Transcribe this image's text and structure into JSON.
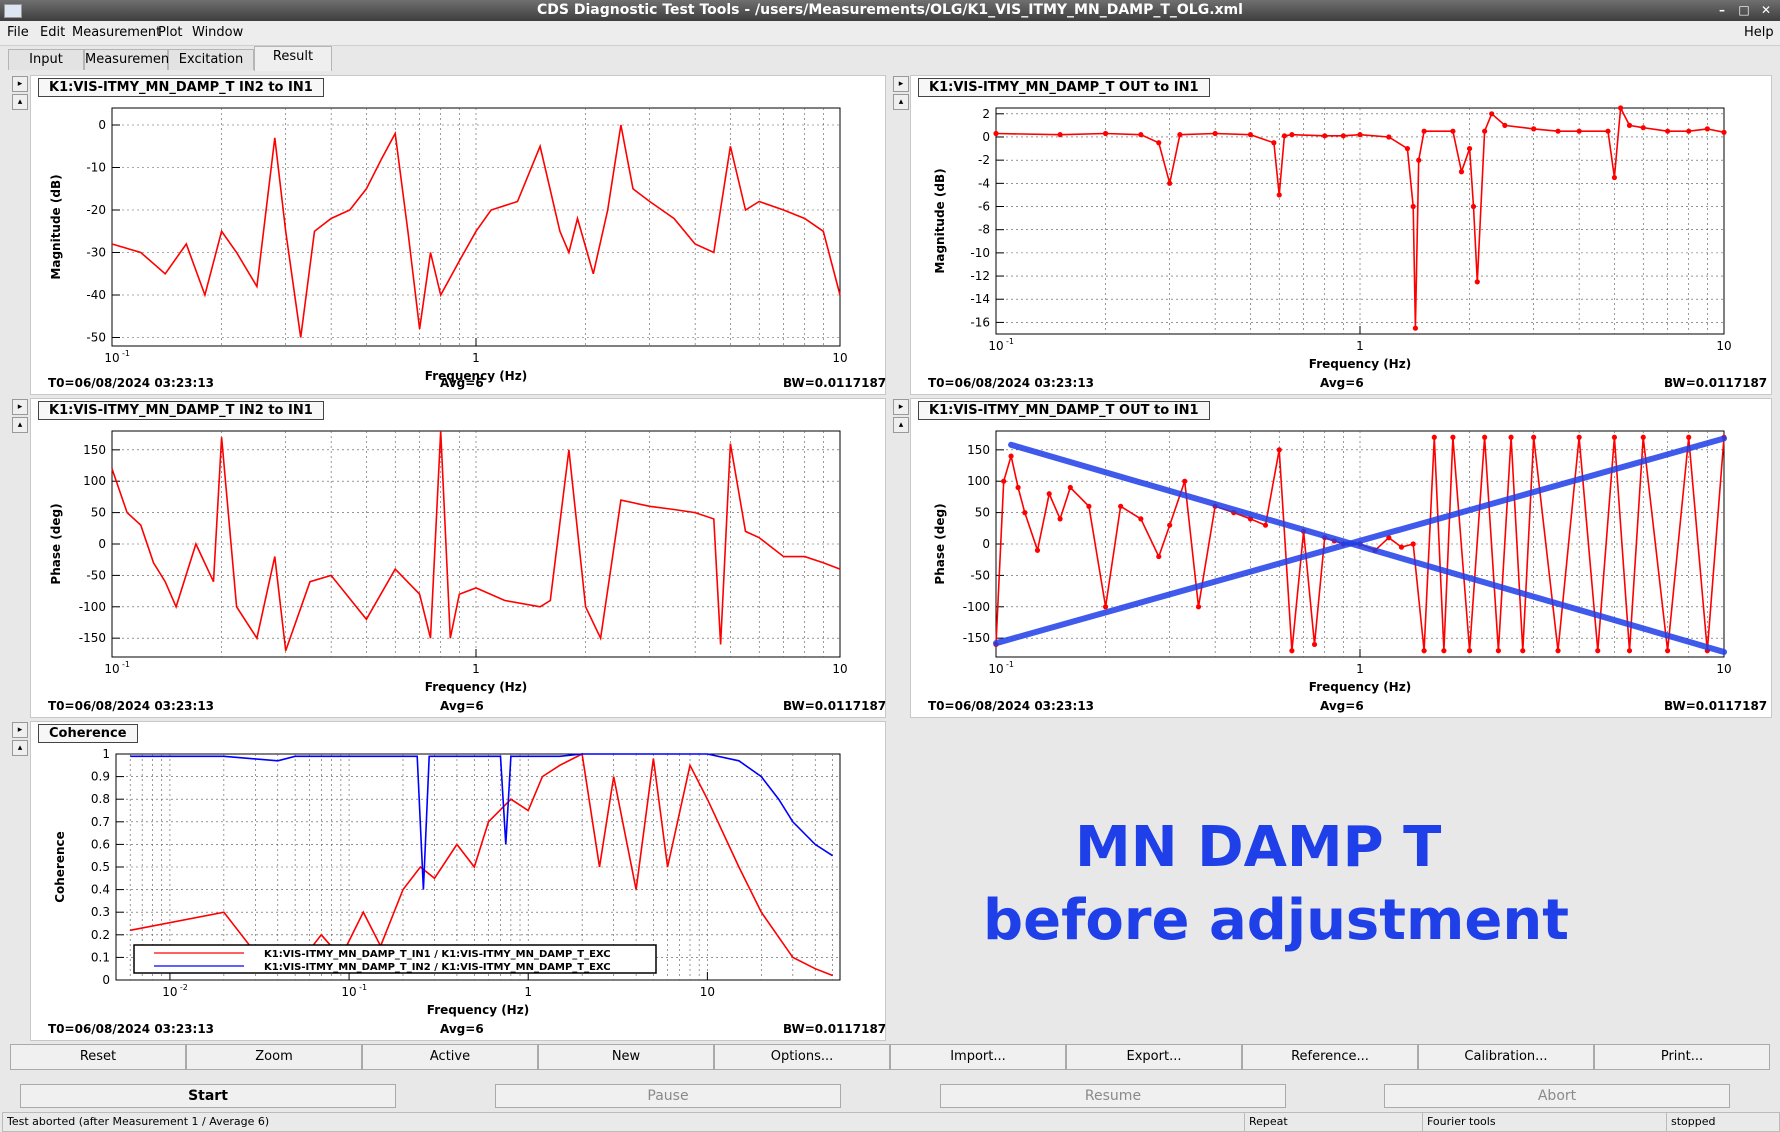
{
  "window": {
    "title": "CDS Diagnostic Test Tools - /users/Measurements/OLG/K1_VIS_ITMY_MN_DAMP_T_OLG.xml",
    "min_glyph": "–",
    "max_glyph": "□",
    "close_glyph": "✕"
  },
  "menu": {
    "file": "File",
    "edit": "Edit",
    "measurement": "Measurement",
    "plot": "Plot",
    "window": "Window",
    "help": "Help"
  },
  "tabs": [
    "Input",
    "Measurement",
    "Excitation",
    "Result"
  ],
  "panels": [
    {
      "label": "K1:VIS-ITMY_MN_DAMP_T IN2 to IN1",
      "ylabel": "Magnitude (dB)",
      "xlabel": "Frequency (Hz)",
      "t0": "T0=06/08/2024 03:23:13",
      "avg": "Avg=6",
      "bw": "BW=0.0117187"
    },
    {
      "label": "K1:VIS-ITMY_MN_DAMP_T OUT to IN1",
      "ylabel": "Magnitude (dB)",
      "xlabel": "Frequency (Hz)",
      "t0": "T0=06/08/2024 03:23:13",
      "avg": "Avg=6",
      "bw": "BW=0.0117187"
    },
    {
      "label": "K1:VIS-ITMY_MN_DAMP_T IN2 to IN1",
      "ylabel": "Phase (deg)",
      "xlabel": "Frequency (Hz)",
      "t0": "T0=06/08/2024 03:23:13",
      "avg": "Avg=6",
      "bw": "BW=0.0117187"
    },
    {
      "label": "K1:VIS-ITMY_MN_DAMP_T OUT to IN1",
      "ylabel": "Phase (deg)",
      "xlabel": "Frequency (Hz)",
      "t0": "T0=06/08/2024 03:23:13",
      "avg": "Avg=6",
      "bw": "BW=0.0117187"
    },
    {
      "label": "Coherence",
      "ylabel": "Coherence",
      "xlabel": "Frequency (Hz)",
      "t0": "T0=06/08/2024 03:23:13",
      "avg": "Avg=6",
      "bw": "BW=0.0117187"
    }
  ],
  "legend": [
    "K1:VIS-ITMY_MN_DAMP_T_IN1 / K1:VIS-ITMY_MN_DAMP_T_EXC",
    "K1:VIS-ITMY_MN_DAMP_T_IN2 / K1:VIS-ITMY_MN_DAMP_T_EXC"
  ],
  "annotation": {
    "line1": "MN DAMP T",
    "line2": "before adjustment",
    "color": "#1f3fe8"
  },
  "buttons_row1": [
    "Reset",
    "Zoom",
    "Active",
    "New",
    "Options...",
    "Import...",
    "Export...",
    "Reference...",
    "Calibration...",
    "Print..."
  ],
  "buttons_row2": [
    "Start",
    "Pause",
    "Resume",
    "Abort"
  ],
  "status": {
    "message": "Test aborted (after Measurement 1 / Average 6)",
    "repeat": "Repeat",
    "tools": "Fourier tools",
    "state": "stopped"
  },
  "chart_data": [
    {
      "type": "line",
      "xscale": "log",
      "xlim": [
        0.1,
        10
      ],
      "ylim": [
        -52,
        4
      ],
      "yticks": [
        0,
        -10,
        -20,
        -30,
        -40,
        -50
      ],
      "xticks": [
        {
          "v": 0.1,
          "t": "10"
        },
        {
          "v": 1,
          "t": "1"
        },
        {
          "v": 10,
          "t": "10"
        }
      ],
      "color": "#ff0000",
      "x": [
        0.1,
        0.12,
        0.14,
        0.16,
        0.18,
        0.2,
        0.22,
        0.25,
        0.28,
        0.3,
        0.33,
        0.36,
        0.4,
        0.45,
        0.5,
        0.55,
        0.6,
        0.65,
        0.7,
        0.75,
        0.8,
        0.9,
        1.0,
        1.1,
        1.3,
        1.5,
        1.7,
        1.8,
        1.9,
        2.1,
        2.3,
        2.5,
        2.7,
        3.0,
        3.5,
        4.0,
        4.5,
        5.0,
        5.5,
        6.0,
        7.0,
        8.0,
        9.0,
        10.0
      ],
      "y": [
        -28,
        -30,
        -35,
        -28,
        -40,
        -25,
        -30,
        -38,
        -3,
        -25,
        -50,
        -25,
        -22,
        -20,
        -15,
        -8,
        -2,
        -25,
        -48,
        -30,
        -40,
        -32,
        -25,
        -20,
        -18,
        -5,
        -25,
        -30,
        -22,
        -35,
        -20,
        0,
        -15,
        -18,
        -22,
        -28,
        -30,
        -5,
        -20,
        -18,
        -20,
        -22,
        -25,
        -40
      ]
    },
    {
      "type": "line",
      "xscale": "log",
      "xlim": [
        0.1,
        10
      ],
      "ylim": [
        -17,
        2.5
      ],
      "yticks": [
        2,
        0,
        -2,
        -4,
        -6,
        -8,
        -10,
        -12,
        -14,
        -16
      ],
      "xticks": [
        {
          "v": 0.1,
          "t": "10"
        },
        {
          "v": 1,
          "t": "1"
        },
        {
          "v": 10,
          "t": "10"
        }
      ],
      "color": "#ff0000",
      "markers": true,
      "x": [
        0.1,
        0.15,
        0.2,
        0.25,
        0.28,
        0.3,
        0.32,
        0.4,
        0.5,
        0.58,
        0.6,
        0.62,
        0.65,
        0.8,
        0.9,
        1.0,
        1.2,
        1.35,
        1.4,
        1.42,
        1.45,
        1.5,
        1.8,
        1.9,
        2.0,
        2.05,
        2.1,
        2.2,
        2.3,
        2.5,
        3.0,
        3.5,
        4.0,
        4.8,
        5.0,
        5.2,
        5.5,
        6.0,
        7.0,
        8.0,
        9.0,
        10.0
      ],
      "y": [
        0.3,
        0.2,
        0.3,
        0.2,
        -0.5,
        -4,
        0.2,
        0.3,
        0.2,
        -0.5,
        -5,
        0.1,
        0.2,
        0.1,
        0.1,
        0.2,
        0,
        -1,
        -6,
        -16.5,
        -2,
        0.5,
        0.5,
        -3,
        -1,
        -6,
        -12.5,
        0.5,
        2,
        1,
        0.7,
        0.5,
        0.5,
        0.5,
        -3.5,
        2.5,
        1,
        0.8,
        0.5,
        0.5,
        0.7,
        0.4
      ]
    },
    {
      "type": "line",
      "xscale": "log",
      "xlim": [
        0.1,
        10
      ],
      "ylim": [
        -180,
        180
      ],
      "yticks": [
        150,
        100,
        50,
        0,
        -50,
        -100,
        -150
      ],
      "xticks": [
        {
          "v": 0.1,
          "t": "10"
        },
        {
          "v": 1,
          "t": "1"
        },
        {
          "v": 10,
          "t": "10"
        }
      ],
      "color": "#ff0000",
      "x": [
        0.1,
        0.11,
        0.12,
        0.13,
        0.14,
        0.15,
        0.17,
        0.19,
        0.2,
        0.22,
        0.25,
        0.28,
        0.3,
        0.35,
        0.4,
        0.5,
        0.6,
        0.7,
        0.75,
        0.8,
        0.85,
        0.9,
        1.0,
        1.2,
        1.5,
        1.6,
        1.8,
        2.0,
        2.2,
        2.5,
        3.0,
        3.5,
        4.0,
        4.5,
        4.7,
        5.0,
        5.5,
        6.0,
        7.0,
        8.0,
        9.0,
        10.0
      ],
      "y": [
        120,
        50,
        30,
        -30,
        -60,
        -100,
        0,
        -60,
        170,
        -100,
        -150,
        -20,
        -170,
        -60,
        -50,
        -120,
        -40,
        -80,
        -150,
        180,
        -150,
        -80,
        -70,
        -90,
        -100,
        -90,
        150,
        -100,
        -150,
        70,
        60,
        55,
        50,
        40,
        -160,
        160,
        20,
        10,
        -20,
        -20,
        -30,
        -40
      ]
    },
    {
      "type": "scatter",
      "xscale": "log",
      "xlim": [
        0.1,
        10
      ],
      "ylim": [
        -180,
        180
      ],
      "yticks": [
        150,
        100,
        50,
        0,
        -50,
        -100,
        -150
      ],
      "xticks": [
        {
          "v": 0.1,
          "t": "10"
        },
        {
          "v": 1,
          "t": "1"
        },
        {
          "v": 10,
          "t": "10"
        }
      ],
      "color": "#ff0000",
      "markers": true,
      "x": [
        0.1,
        0.105,
        0.11,
        0.115,
        0.12,
        0.13,
        0.14,
        0.15,
        0.16,
        0.18,
        0.2,
        0.22,
        0.25,
        0.28,
        0.3,
        0.33,
        0.36,
        0.4,
        0.45,
        0.5,
        0.55,
        0.6,
        0.65,
        0.7,
        0.75,
        0.8,
        0.85,
        0.9,
        1.0,
        1.1,
        1.2,
        1.3,
        1.4,
        1.5,
        1.6,
        1.7,
        1.8,
        2.0,
        2.2,
        2.4,
        2.6,
        2.8,
        3.0,
        3.5,
        4.0,
        4.5,
        5.0,
        5.5,
        6.0,
        7.0,
        8.0,
        9.0,
        10.0
      ],
      "y": [
        -160,
        100,
        140,
        90,
        50,
        -10,
        80,
        40,
        90,
        60,
        -100,
        60,
        40,
        -20,
        30,
        100,
        -100,
        60,
        50,
        40,
        30,
        150,
        -170,
        20,
        -160,
        10,
        5,
        0,
        0,
        -10,
        10,
        -5,
        0,
        -170,
        170,
        -170,
        170,
        -170,
        170,
        -170,
        170,
        -170,
        170,
        -170,
        170,
        -170,
        170,
        -170,
        170,
        -170,
        170,
        -170,
        170
      ],
      "xline1": [
        {
          "x": 0.11,
          "y": 158
        },
        {
          "x": 10,
          "y": -172
        }
      ],
      "xline2": [
        {
          "x": 0.1,
          "y": -158
        },
        {
          "x": 10,
          "y": 168
        }
      ]
    },
    {
      "type": "line",
      "xscale": "log",
      "xlim": [
        0.005,
        55
      ],
      "ylim": [
        0,
        1
      ],
      "yticks": [
        1,
        0.9,
        0.8,
        0.7,
        0.6,
        0.5,
        0.4,
        0.3,
        0.2,
        0.1,
        0
      ],
      "xticks": [
        {
          "v": 0.01,
          "t": "10"
        },
        {
          "v": 0.1,
          "t": "10"
        },
        {
          "v": 1,
          "t": "1"
        },
        {
          "v": 10,
          "t": "10"
        }
      ],
      "series": [
        {
          "name": "K1:VIS-ITMY_MN_DAMP_T_IN1 / K1:VIS-ITMY_MN_DAMP_T_EXC",
          "color": "#ff0000",
          "x": [
            0.006,
            0.02,
            0.03,
            0.05,
            0.07,
            0.09,
            0.12,
            0.15,
            0.2,
            0.25,
            0.3,
            0.4,
            0.5,
            0.6,
            0.8,
            1.0,
            1.2,
            1.5,
            2.0,
            2.5,
            3.0,
            4.0,
            5.0,
            6.0,
            8.0,
            10.0,
            15.0,
            20.0,
            30.0,
            40.0,
            50.0
          ],
          "y": [
            0.22,
            0.3,
            0.12,
            0.05,
            0.2,
            0.1,
            0.3,
            0.15,
            0.4,
            0.5,
            0.45,
            0.6,
            0.5,
            0.7,
            0.8,
            0.75,
            0.9,
            0.95,
            1.0,
            0.5,
            0.9,
            0.4,
            0.98,
            0.5,
            0.95,
            0.8,
            0.5,
            0.3,
            0.1,
            0.05,
            0.02
          ]
        },
        {
          "name": "K1:VIS-ITMY_MN_DAMP_T_IN2 / K1:VIS-ITMY_MN_DAMP_T_EXC",
          "color": "#0000ff",
          "x": [
            0.006,
            0.02,
            0.04,
            0.05,
            0.1,
            0.2,
            0.24,
            0.26,
            0.28,
            0.3,
            0.5,
            0.7,
            0.75,
            0.8,
            1.0,
            1.5,
            2.0,
            5.0,
            10.0,
            15.0,
            20.0,
            25.0,
            30.0,
            40.0,
            50.0
          ],
          "y": [
            0.99,
            0.99,
            0.97,
            0.99,
            0.99,
            0.99,
            0.99,
            0.4,
            0.99,
            0.99,
            0.99,
            0.99,
            0.6,
            0.99,
            0.99,
            0.99,
            1.0,
            1.0,
            1.0,
            0.97,
            0.9,
            0.8,
            0.7,
            0.6,
            0.55
          ]
        }
      ]
    }
  ]
}
